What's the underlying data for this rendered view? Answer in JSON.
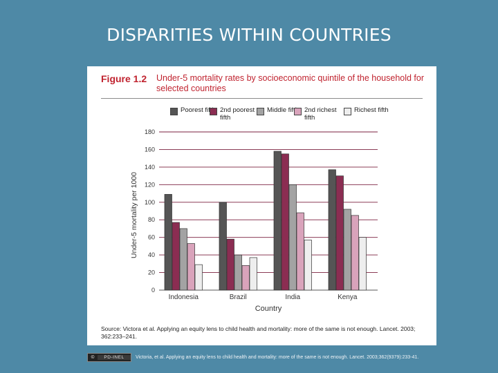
{
  "slide": {
    "title": "DISPARITIES WITHIN COUNTRIES"
  },
  "figure": {
    "number": "Figure 1.2",
    "caption": "Under-5 mortality rates by socioeconomic quintile of the household for selected countries",
    "source": "Source: Victora et al. Applying an equity lens to child health and mortality: more of the same is not enough. Lancet. 2003; 362:233–241."
  },
  "footer": {
    "cc_symbol": "©",
    "license": "PD-INEL",
    "citation": "Victoria, et al. Applying an equity lens to child health and mortality: more of the same is not enough. Lancet. 2003;362(9379):233-41."
  },
  "chart_data": {
    "type": "bar",
    "xlabel": "Country",
    "ylabel": "Under-5 mortality per 1000",
    "ylim": [
      0,
      180
    ],
    "yticks": [
      0,
      20,
      40,
      60,
      80,
      100,
      120,
      140,
      160,
      180
    ],
    "ytick_labels": [
      "0",
      "20",
      "40",
      "60",
      "80",
      "100",
      "120",
      "140",
      "160",
      "180"
    ],
    "grid": true,
    "legend_position": "top",
    "categories": [
      "Indonesia",
      "Brazil",
      "India",
      "Kenya"
    ],
    "series": [
      {
        "name": "Poorest fifth",
        "color": "#555555",
        "values": [
          109,
          100,
          158,
          137
        ]
      },
      {
        "name": "2nd poorest fifth",
        "color": "#8b2d52",
        "values": [
          77,
          58,
          155,
          130
        ]
      },
      {
        "name": "Middle fifth",
        "color": "#a3a3a3",
        "values": [
          70,
          40,
          120,
          92
        ]
      },
      {
        "name": "2nd richest fifth",
        "color": "#d9a3bb",
        "values": [
          53,
          28,
          88,
          85
        ]
      },
      {
        "name": "Richest fifth",
        "color": "#eeeeee",
        "values": [
          29,
          37,
          57,
          60
        ]
      }
    ]
  }
}
